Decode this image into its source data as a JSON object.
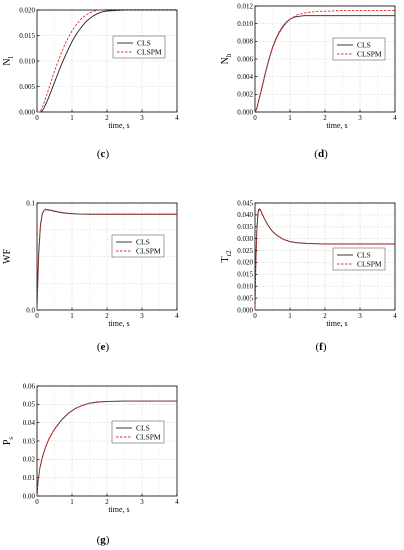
{
  "colors": {
    "cls": "#222222",
    "clspm": "#e03030",
    "grid": "#d8d8d8",
    "axis": "#000000"
  },
  "chart_data": [
    {
      "id": "c",
      "type": "line",
      "caption_letter": "c",
      "ylabel_main": "N",
      "ylabel_sub": "l",
      "xlabel": "time, s",
      "xlim": [
        0,
        4
      ],
      "ylim": [
        0,
        0.02
      ],
      "xticks": [
        "0",
        "1",
        "2",
        "3",
        "4"
      ],
      "yticks": [
        "0.000",
        "0.005",
        "0.010",
        "0.015",
        "0.020"
      ],
      "legend_position": "center-right",
      "series": [
        {
          "name": "CLS",
          "style": "solid",
          "x": [
            0,
            0.1,
            0.15,
            0.2,
            0.3,
            0.4,
            0.5,
            0.6,
            0.7,
            0.8,
            0.9,
            1.0,
            1.1,
            1.2,
            1.3,
            1.4,
            1.5,
            1.6,
            1.7,
            1.8,
            1.9,
            2.0,
            2.2,
            2.5,
            3.0,
            3.5,
            4.0
          ],
          "y": [
            0,
            0,
            0.0002,
            0.0008,
            0.0023,
            0.004,
            0.0058,
            0.0076,
            0.0093,
            0.0109,
            0.0124,
            0.0138,
            0.015,
            0.016,
            0.0169,
            0.0177,
            0.0183,
            0.0188,
            0.0192,
            0.0195,
            0.0197,
            0.0198,
            0.0199,
            0.02,
            0.02,
            0.02,
            0.02
          ]
        },
        {
          "name": "CLSPM",
          "style": "dashed",
          "x": [
            0,
            0.08,
            0.15,
            0.2,
            0.3,
            0.4,
            0.5,
            0.6,
            0.7,
            0.8,
            0.9,
            1.0,
            1.1,
            1.2,
            1.3,
            1.4,
            1.5,
            1.6,
            1.7,
            1.8,
            2.0,
            2.2,
            2.5,
            3.0,
            3.5,
            4.0
          ],
          "y": [
            0,
            0,
            0.0008,
            0.0018,
            0.0038,
            0.0059,
            0.008,
            0.0099,
            0.0117,
            0.0133,
            0.0147,
            0.0159,
            0.0169,
            0.0178,
            0.0185,
            0.019,
            0.0194,
            0.0197,
            0.0199,
            0.02,
            0.0201,
            0.0201,
            0.0201,
            0.0201,
            0.0201,
            0.0201
          ]
        }
      ]
    },
    {
      "id": "d",
      "type": "line",
      "caption_letter": "d",
      "ylabel_main": "N",
      "ylabel_sub": "b",
      "xlabel": "time, s",
      "xlim": [
        0,
        4
      ],
      "ylim": [
        0,
        0.012
      ],
      "xticks": [
        "0",
        "1",
        "2",
        "3",
        "4"
      ],
      "yticks": [
        "0.000",
        "0.002",
        "0.004",
        "0.006",
        "0.008",
        "0.010",
        "0.012"
      ],
      "legend_position": "top-right",
      "series": [
        {
          "name": "CLS",
          "style": "solid",
          "x": [
            0,
            0.05,
            0.1,
            0.2,
            0.3,
            0.4,
            0.5,
            0.6,
            0.7,
            0.8,
            0.9,
            1.0,
            1.1,
            1.2,
            1.4,
            1.6,
            2.0,
            2.5,
            3.0,
            4.0
          ],
          "y": [
            0,
            0.0004,
            0.0012,
            0.0028,
            0.0045,
            0.006,
            0.0073,
            0.0083,
            0.0091,
            0.0097,
            0.0102,
            0.0105,
            0.0107,
            0.0108,
            0.0109,
            0.0109,
            0.0109,
            0.0109,
            0.0109,
            0.0109
          ]
        },
        {
          "name": "CLSPM",
          "style": "dashed",
          "x": [
            0,
            0.05,
            0.1,
            0.2,
            0.3,
            0.4,
            0.5,
            0.6,
            0.7,
            0.8,
            0.9,
            1.0,
            1.2,
            1.4,
            1.6,
            1.8,
            2.0,
            2.5,
            3.0,
            4.0
          ],
          "y": [
            0,
            0.0004,
            0.0012,
            0.0027,
            0.0044,
            0.0059,
            0.0072,
            0.0082,
            0.009,
            0.0096,
            0.0101,
            0.0105,
            0.011,
            0.0112,
            0.0113,
            0.0114,
            0.0114,
            0.0115,
            0.0115,
            0.0115
          ]
        }
      ]
    },
    {
      "id": "e",
      "type": "line",
      "caption_letter": "e",
      "ylabel_main": "WF",
      "ylabel_sub": "",
      "xlabel": "time, s",
      "xlim": [
        0,
        4
      ],
      "ylim": [
        0,
        0.1
      ],
      "xticks": [
        "0",
        "1",
        "2",
        "3",
        "4"
      ],
      "yticks": [
        "0.0",
        "0.1"
      ],
      "yticks_minor_count": 4,
      "legend_position": "center-right",
      "series": [
        {
          "name": "CLS",
          "style": "solid",
          "x": [
            0,
            0.02,
            0.05,
            0.1,
            0.15,
            0.2,
            0.25,
            0.3,
            0.4,
            0.5,
            0.7,
            0.9,
            1.2,
            1.5,
            2.0,
            3.0,
            4.0
          ],
          "y": [
            0,
            0.025,
            0.055,
            0.08,
            0.09,
            0.093,
            0.094,
            0.0935,
            0.093,
            0.0922,
            0.091,
            0.0902,
            0.0897,
            0.0895,
            0.0895,
            0.0895,
            0.0895
          ]
        },
        {
          "name": "CLSPM",
          "style": "dashed",
          "x": [
            0,
            0.02,
            0.05,
            0.1,
            0.15,
            0.2,
            0.25,
            0.3,
            0.4,
            0.5,
            0.7,
            0.9,
            1.2,
            1.5,
            2.0,
            3.0,
            4.0
          ],
          "y": [
            0,
            0.02,
            0.05,
            0.078,
            0.089,
            0.093,
            0.0945,
            0.094,
            0.0935,
            0.0927,
            0.0913,
            0.0904,
            0.0898,
            0.0896,
            0.0895,
            0.0895,
            0.0895
          ]
        }
      ]
    },
    {
      "id": "f",
      "type": "line",
      "caption_letter": "f",
      "ylabel_main": "T",
      "ylabel_sub": "r2",
      "xlabel": "time, s",
      "xlim": [
        0,
        4
      ],
      "ylim": [
        0,
        0.045
      ],
      "xticks": [
        "0",
        "1",
        "2",
        "3",
        "4"
      ],
      "yticks": [
        "0.000",
        "0.005",
        "0.010",
        "0.015",
        "0.020",
        "0.025",
        "0.030",
        "0.035",
        "0.040",
        "0.045"
      ],
      "legend_position": "center-right",
      "series": [
        {
          "name": "CLS",
          "style": "solid",
          "x": [
            0,
            0.02,
            0.05,
            0.08,
            0.1,
            0.13,
            0.16,
            0.2,
            0.3,
            0.4,
            0.5,
            0.6,
            0.8,
            1.0,
            1.2,
            1.5,
            2.0,
            2.5,
            3.0,
            4.0
          ],
          "y": [
            0,
            0.018,
            0.033,
            0.04,
            0.042,
            0.0425,
            0.042,
            0.0405,
            0.0375,
            0.035,
            0.0331,
            0.0317,
            0.0298,
            0.0288,
            0.0283,
            0.028,
            0.0278,
            0.0278,
            0.0278,
            0.0278
          ]
        },
        {
          "name": "CLSPM",
          "style": "dashed",
          "x": [
            0,
            0.02,
            0.05,
            0.08,
            0.1,
            0.13,
            0.16,
            0.2,
            0.3,
            0.4,
            0.5,
            0.6,
            0.8,
            1.0,
            1.2,
            1.5,
            2.0,
            2.5,
            3.0,
            4.0
          ],
          "y": [
            0,
            0.017,
            0.032,
            0.039,
            0.0415,
            0.042,
            0.0418,
            0.0403,
            0.0374,
            0.0349,
            0.033,
            0.0316,
            0.0297,
            0.0287,
            0.0282,
            0.0279,
            0.0277,
            0.0277,
            0.0277,
            0.0277
          ]
        }
      ]
    },
    {
      "id": "g",
      "type": "line",
      "caption_letter": "g",
      "ylabel_main": "P",
      "ylabel_sub": "s",
      "xlabel": "time, s",
      "xlim": [
        0,
        4
      ],
      "ylim": [
        0,
        0.06
      ],
      "xticks": [
        "0",
        "1",
        "2",
        "3",
        "4"
      ],
      "yticks": [
        "0.00",
        "0.01",
        "0.02",
        "0.03",
        "0.04",
        "0.05",
        "0.06"
      ],
      "legend_position": "center-right",
      "series": [
        {
          "name": "CLS",
          "style": "solid",
          "x": [
            0,
            0.03,
            0.08,
            0.15,
            0.25,
            0.35,
            0.5,
            0.7,
            0.9,
            1.1,
            1.3,
            1.5,
            1.7,
            2.0,
            2.5,
            3.0,
            4.0
          ],
          "y": [
            0,
            0.008,
            0.015,
            0.021,
            0.027,
            0.0315,
            0.0365,
            0.0415,
            0.0452,
            0.0478,
            0.0495,
            0.0506,
            0.0512,
            0.0516,
            0.0518,
            0.0518,
            0.0518
          ]
        },
        {
          "name": "CLSPM",
          "style": "dashed",
          "x": [
            0,
            0.03,
            0.08,
            0.15,
            0.25,
            0.35,
            0.5,
            0.7,
            0.9,
            1.1,
            1.3,
            1.5,
            1.7,
            2.0,
            2.5,
            3.0,
            4.0
          ],
          "y": [
            0,
            0.0078,
            0.0148,
            0.0208,
            0.0268,
            0.0313,
            0.0363,
            0.0413,
            0.0451,
            0.0477,
            0.0494,
            0.0505,
            0.0511,
            0.0515,
            0.0517,
            0.0517,
            0.0517
          ]
        }
      ]
    }
  ]
}
